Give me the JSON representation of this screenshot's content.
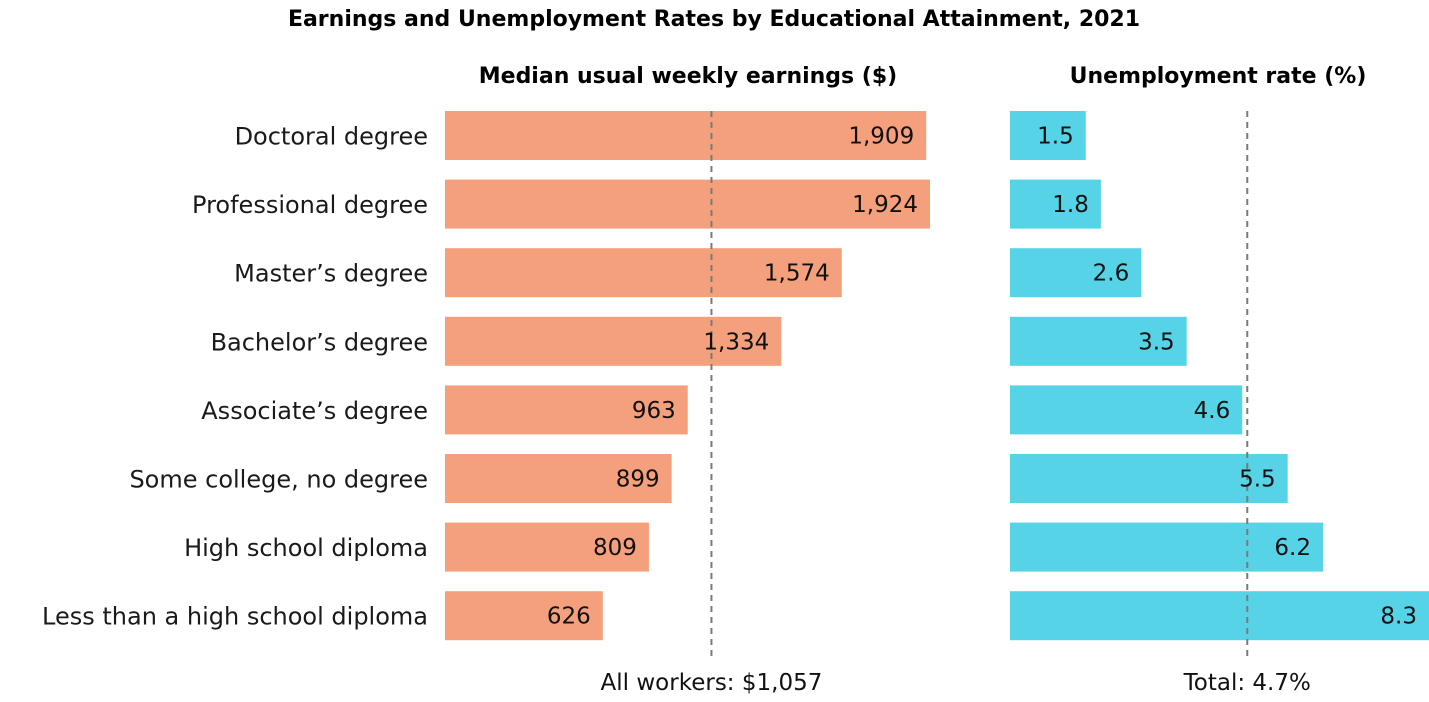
{
  "chart_data": {
    "type": "bar",
    "orientation": "horizontal",
    "title": "Earnings and Unemployment Rates by Educational Attainment, 2021",
    "categories": [
      "Doctoral degree",
      "Professional degree",
      "Master’s degree",
      "Bachelor’s degree",
      "Associate’s degree",
      "Some college, no degree",
      "High school diploma",
      "Less than a high school diploma"
    ],
    "panels": [
      {
        "id": "earnings",
        "title": "Median usual weekly earnings ($)",
        "values": [
          1909,
          1924,
          1574,
          1334,
          963,
          899,
          809,
          626
        ],
        "value_labels": [
          "1,909",
          "1,924",
          "1,574",
          "1,334",
          "963",
          "899",
          "809",
          "626"
        ],
        "xlim": [
          0,
          1924
        ],
        "color": "#f5a07d",
        "reference": {
          "value": 1057,
          "label": "All workers: $1,057"
        }
      },
      {
        "id": "unemployment",
        "title": "Unemployment rate (%)",
        "values": [
          1.5,
          1.8,
          2.6,
          3.5,
          4.6,
          5.5,
          6.2,
          8.3
        ],
        "value_labels": [
          "1.5",
          "1.8",
          "2.6",
          "3.5",
          "4.6",
          "5.5",
          "6.2",
          "8.3"
        ],
        "xlim": [
          0,
          8.3
        ],
        "color": "#56d3e6",
        "reference": {
          "value": 4.7,
          "label": "Total: 4.7%"
        }
      }
    ]
  }
}
